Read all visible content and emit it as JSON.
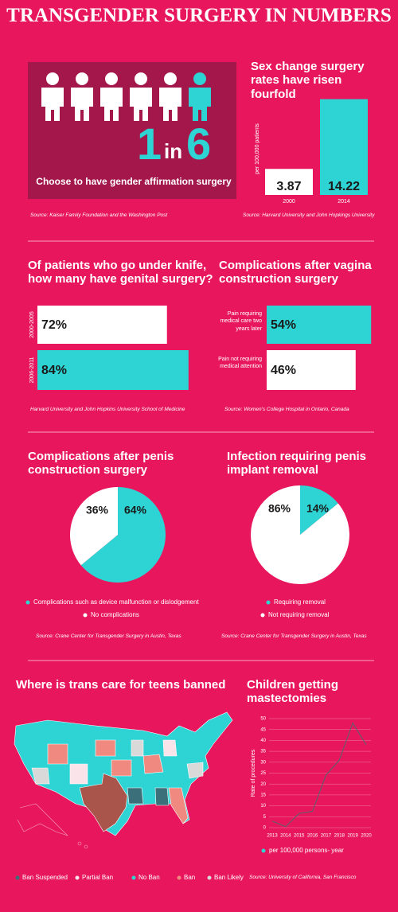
{
  "title": "TRANSGENDER SURGERY IN NUMBERS",
  "stat": {
    "numerator": 1,
    "word": "in",
    "denominator": 6,
    "caption": "Choose to have gender affirmation surgery",
    "source": "Source: Kaiser Family Foundation and the Washington Post"
  },
  "chart_data": [
    {
      "type": "bar",
      "title": "Sex change surgery rates have risen fourfold",
      "y_label": "per 100,000 patients",
      "categories": [
        "2000",
        "2014"
      ],
      "values": [
        3.87,
        14.22
      ],
      "colors": [
        "#ffffff",
        "#2ed3d3"
      ],
      "ylim": [
        0,
        15
      ],
      "source": "Source: Harvard University and John Hopkings University"
    },
    {
      "type": "bar",
      "orientation": "horizontal",
      "title": "Of patients who go under knife, how many have genital surgery?",
      "categories": [
        "2000-2005",
        "2006-2011"
      ],
      "values": [
        72,
        84
      ],
      "value_labels": [
        "72%",
        "84%"
      ],
      "colors": [
        "#ffffff",
        "#2ed3d3"
      ],
      "xlim": [
        0,
        100
      ],
      "source": "Harvard University and John Hopkins University School of Medicine"
    },
    {
      "type": "bar",
      "orientation": "horizontal",
      "title": "Complications after vagina construction surgery",
      "categories": [
        "Pain requiring medical care two years later",
        "Pain not requiring medical attention"
      ],
      "values": [
        54,
        46
      ],
      "value_labels": [
        "54%",
        "46%"
      ],
      "colors": [
        "#2ed3d3",
        "#ffffff"
      ],
      "xlim": [
        0,
        100
      ],
      "source": "Source: Women's College Hospital in Ontario, Canada"
    },
    {
      "type": "pie",
      "title": "Complications after penis construction surgery",
      "categories": [
        "Complications such as device malfunction or dislodgement",
        "No complications"
      ],
      "values": [
        64,
        36
      ],
      "value_labels": [
        "64%",
        "36%"
      ],
      "colors": [
        "#2ed3d3",
        "#ffffff"
      ],
      "source": "Source: Crane Center for Transgender Surgery in Austin, Texas"
    },
    {
      "type": "pie",
      "title": "Infection requiring penis implant removal",
      "categories": [
        "Requiring removal",
        "Not requiring removal"
      ],
      "values": [
        14,
        86
      ],
      "value_labels": [
        "14%",
        "86%"
      ],
      "colors": [
        "#2ed3d3",
        "#ffffff"
      ],
      "source": "Source: Crane Center for Transgender Surgery in Austin, Texas"
    },
    {
      "type": "map",
      "title": "Where is trans care for teens banned",
      "legend": [
        {
          "name": "Ban Suspended",
          "color": "#3b6f79"
        },
        {
          "name": "Partial Ban",
          "color": "#fbe3ea"
        },
        {
          "name": "No Ban",
          "color": "#2ed3d3"
        },
        {
          "name": "Ban",
          "color": "#f08a80"
        },
        {
          "name": "Ban Likely",
          "color": "#d9d9d9"
        }
      ]
    },
    {
      "type": "line",
      "title": "Children getting mastectomies",
      "y_label": "Rate of procedures",
      "categories": [
        "2013",
        "2014",
        "2015",
        "2016",
        "2017",
        "2018",
        "2019",
        "2020"
      ],
      "series": [
        {
          "name": "per 100,000 persons- year",
          "color": "#2ed3d3",
          "values": [
            3,
            0.5,
            6.5,
            7.5,
            24,
            31,
            48,
            38
          ]
        }
      ],
      "ylim": [
        0,
        50
      ],
      "yticks": [
        0,
        5,
        10,
        15,
        20,
        25,
        30,
        35,
        40,
        45,
        50
      ],
      "grid": true,
      "source": "Source: University of California, San Francisco"
    }
  ]
}
